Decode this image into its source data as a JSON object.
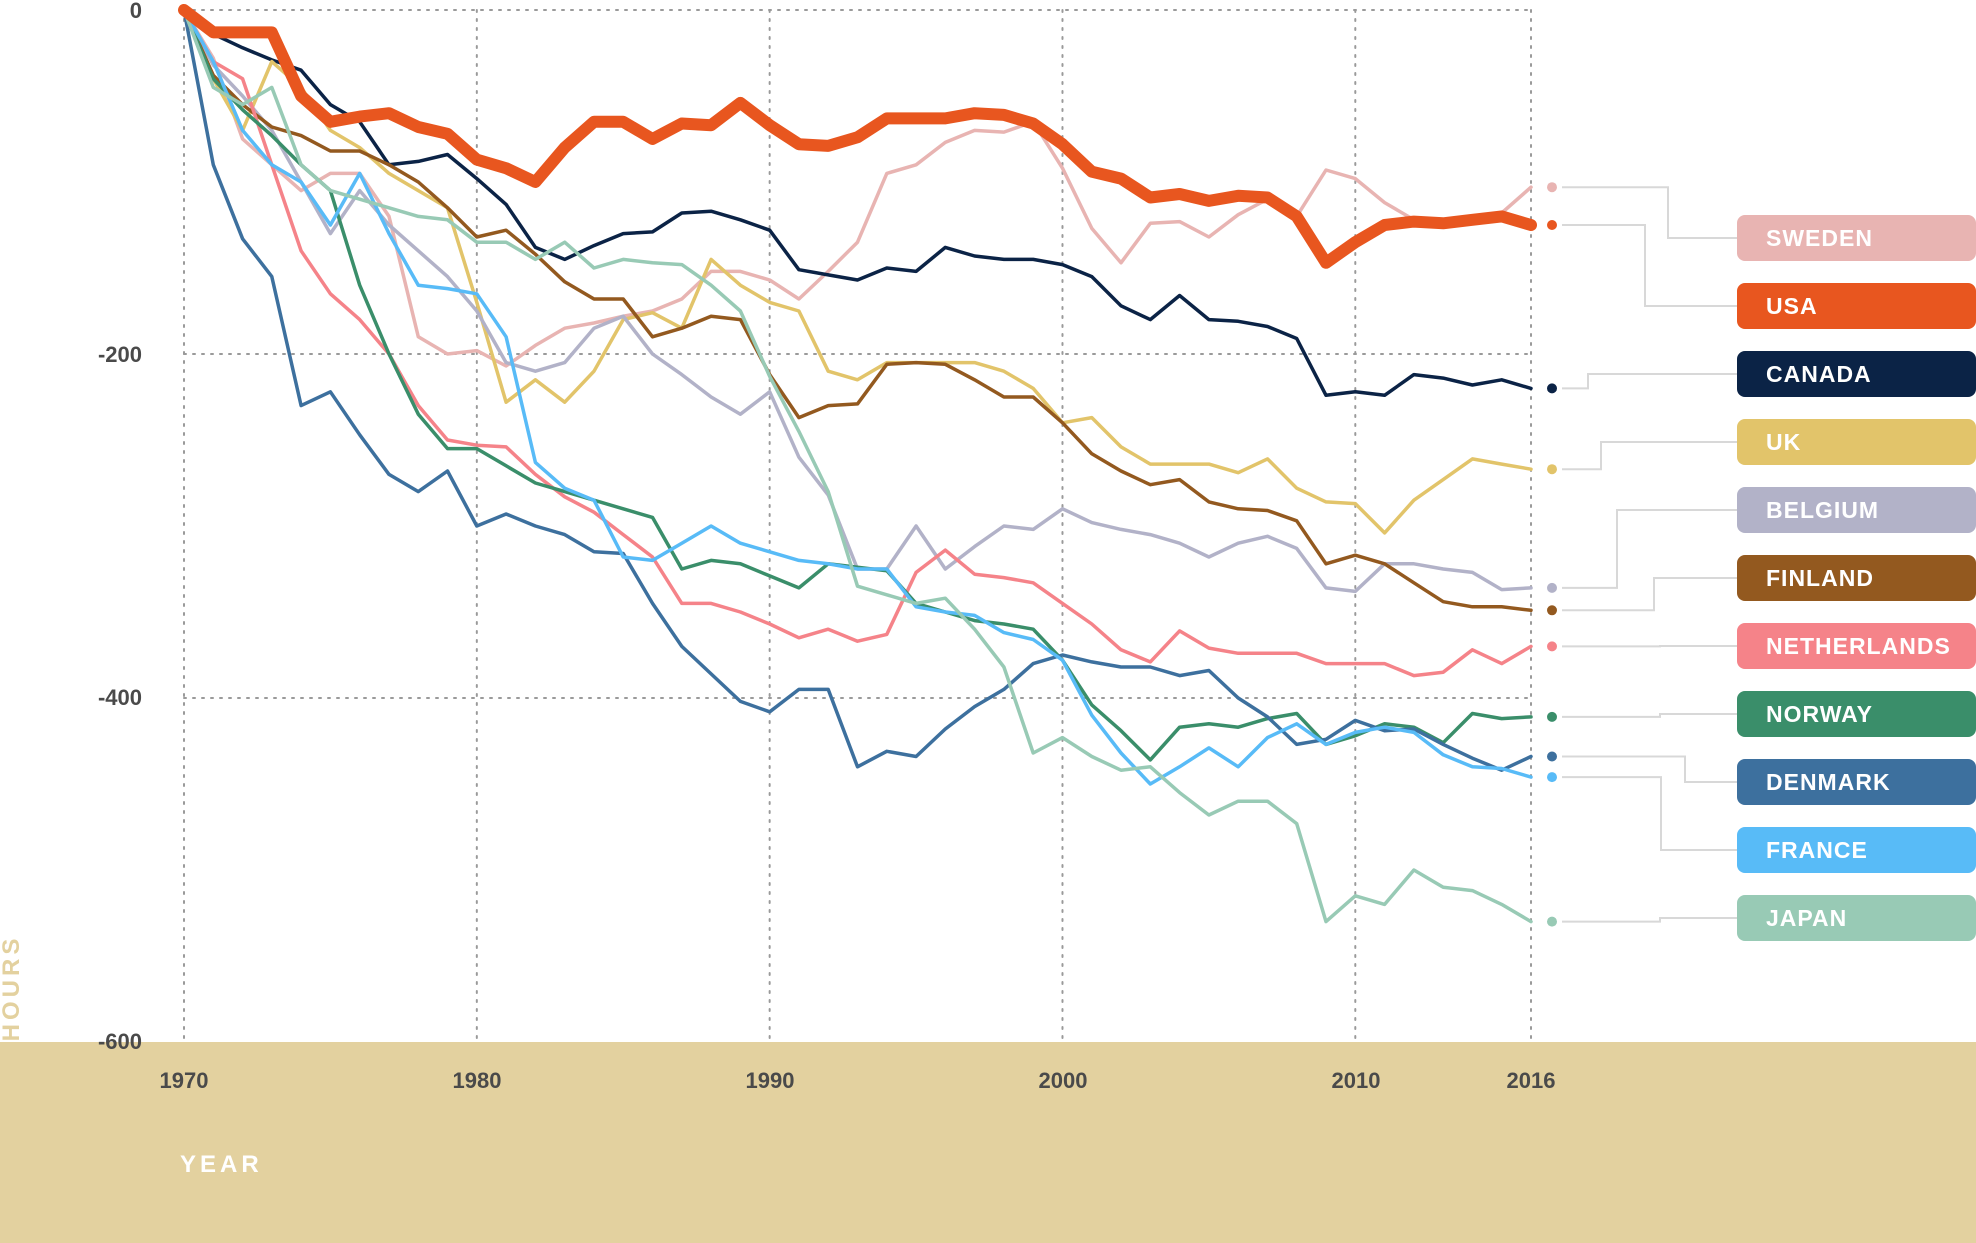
{
  "chart_data": {
    "type": "line",
    "title": "",
    "xlabel": "YEAR",
    "ylabel": "HOURS",
    "xlim": [
      1970,
      2016
    ],
    "ylim": [
      -600,
      0
    ],
    "x_ticks": [
      "1970",
      "1980",
      "1990",
      "2000",
      "2010",
      "2016"
    ],
    "y_ticks": [
      "0",
      "-200",
      "-400",
      "-600"
    ],
    "grid": "dotted",
    "legend": "right",
    "x": [
      1970,
      1971,
      1972,
      1973,
      1974,
      1975,
      1976,
      1977,
      1978,
      1979,
      1980,
      1981,
      1982,
      1983,
      1984,
      1985,
      1986,
      1987,
      1988,
      1989,
      1990,
      1991,
      1992,
      1993,
      1994,
      1995,
      1996,
      1997,
      1998,
      1999,
      2000,
      2001,
      2002,
      2003,
      2004,
      2005,
      2006,
      2007,
      2008,
      2009,
      2010,
      2011,
      2012,
      2013,
      2014,
      2015,
      2016
    ],
    "series": [
      {
        "name": "SWEDEN",
        "color": "#e8b4b2",
        "values": [
          0,
          -28,
          -75,
          -90,
          -105,
          -95,
          -95,
          -120,
          -190,
          -200,
          -198,
          -207,
          -195,
          -185,
          -182,
          -178,
          -175,
          -168,
          -152,
          -152,
          -157,
          -168,
          -152,
          -135,
          -95,
          -90,
          -77,
          -70,
          -71,
          -65,
          -92,
          -127,
          -147,
          -124,
          -123,
          -132,
          -119,
          -110,
          -120,
          -93,
          -98,
          -112,
          -122,
          -125,
          -122,
          -118,
          -103
        ]
      },
      {
        "name": "USA",
        "color": "#e8561f",
        "emphasis": true,
        "values": [
          0,
          -13,
          -13,
          -13,
          -50,
          -65,
          -62,
          -60,
          -68,
          -72,
          -87,
          -92,
          -100,
          -80,
          -65,
          -65,
          -75,
          -66,
          -67,
          -54,
          -67,
          -78,
          -79,
          -74,
          -63,
          -63,
          -63,
          -60,
          -61,
          -66,
          -78,
          -94,
          -98,
          -109,
          -107,
          -111,
          -108,
          -109,
          -120,
          -147,
          -135,
          -125,
          -123,
          -124,
          -122,
          -120,
          -125
        ]
      },
      {
        "name": "CANADA",
        "color": "#0b2346",
        "values": [
          0,
          -14,
          -22,
          -29,
          -35,
          -55,
          -65,
          -90,
          -88,
          -84,
          -98,
          -113,
          -138,
          -145,
          -137,
          -130,
          -129,
          -118,
          -117,
          -122,
          -128,
          -151,
          -154,
          -157,
          -150,
          -152,
          -138,
          -143,
          -145,
          -145,
          -148,
          -155,
          -172,
          -180,
          -166,
          -180,
          -181,
          -184,
          -191,
          -224,
          -222,
          -224,
          -212,
          -214,
          -218,
          -215,
          -220
        ]
      },
      {
        "name": "UK",
        "color": "#e2c46a",
        "values": [
          0,
          -40,
          -70,
          -30,
          -45,
          -70,
          -80,
          -95,
          -105,
          -115,
          -170,
          -228,
          -215,
          -228,
          -210,
          -180,
          -176,
          -185,
          -145,
          -160,
          -170,
          -175,
          -210,
          -215,
          -205,
          -205,
          -205,
          -205,
          -210,
          -220,
          -240,
          -237,
          -254,
          -264,
          -264,
          -264,
          -269,
          -261,
          -278,
          -286,
          -287,
          -304,
          -285,
          -273,
          -261,
          -264,
          -267
        ]
      },
      {
        "name": "BELGIUM",
        "color": "#b2b2c8",
        "values": [
          0,
          -32,
          -50,
          -70,
          -100,
          -130,
          -105,
          -125,
          -140,
          -155,
          -175,
          -205,
          -210,
          -205,
          -185,
          -178,
          -200,
          -212,
          -225,
          -235,
          -222,
          -260,
          -282,
          -325,
          -325,
          -300,
          -325,
          -312,
          -300,
          -302,
          -290,
          -298,
          -302,
          -305,
          -310,
          -318,
          -310,
          -306,
          -313,
          -336,
          -338,
          -322,
          -322,
          -325,
          -327,
          -337,
          -336
        ]
      },
      {
        "name": "FINLAND",
        "color": "#93591f",
        "values": [
          0,
          -38,
          -55,
          -68,
          -73,
          -82,
          -82,
          -90,
          -100,
          -115,
          -132,
          -128,
          -142,
          -158,
          -168,
          -168,
          -190,
          -185,
          -178,
          -180,
          -212,
          -237,
          -230,
          -229,
          -206,
          -205,
          -206,
          -215,
          -225,
          -225,
          -240,
          -258,
          -268,
          -276,
          -273,
          -286,
          -290,
          -291,
          -297,
          -322,
          -317,
          -322,
          -333,
          -344,
          -347,
          -347,
          -349
        ]
      },
      {
        "name": "NETHERLANDS",
        "color": "#f58389",
        "values": [
          0,
          -30,
          -40,
          -90,
          -140,
          -165,
          -180,
          -200,
          -230,
          -250,
          -253,
          -254,
          -270,
          -283,
          -292,
          -305,
          -318,
          -345,
          -345,
          -350,
          -357,
          -365,
          -360,
          -367,
          -363,
          -327,
          -314,
          -328,
          -330,
          -333,
          -345,
          -357,
          -372,
          -379,
          -361,
          -371,
          -374,
          -374,
          -374,
          -380,
          -380,
          -380,
          -387,
          -385,
          -372,
          -380,
          -370
        ]
      },
      {
        "name": "NORWAY",
        "color": "#3a8e6a",
        "values": [
          0,
          -40,
          -58,
          -73,
          -90,
          -105,
          -160,
          -200,
          -235,
          -255,
          -255,
          -265,
          -275,
          -280,
          -285,
          -290,
          -295,
          -325,
          -320,
          -322,
          -329,
          -336,
          -322,
          -324,
          -326,
          -345,
          -350,
          -355,
          -357,
          -360,
          -378,
          -404,
          -419,
          -436,
          -417,
          -415,
          -417,
          -412,
          -409,
          -427,
          -422,
          -415,
          -417,
          -426,
          -409,
          -412,
          -411
        ]
      },
      {
        "name": "DENMARK",
        "color": "#3d709e",
        "values": [
          0,
          -90,
          -133,
          -155,
          -230,
          -222,
          -247,
          -270,
          -280,
          -268,
          -300,
          -293,
          -300,
          -305,
          -315,
          -316,
          -345,
          -370,
          -386,
          -402,
          -408,
          -395,
          -395,
          -440,
          -431,
          -434,
          -418,
          -405,
          -395,
          -380,
          -375,
          -379,
          -382,
          -382,
          -387,
          -384,
          -400,
          -411,
          -427,
          -424,
          -413,
          -419,
          -418,
          -427,
          -435,
          -442,
          -434
        ]
      },
      {
        "name": "FRANCE",
        "color": "#58bbf7",
        "values": [
          0,
          -30,
          -70,
          -90,
          -100,
          -125,
          -95,
          -130,
          -160,
          -162,
          -165,
          -190,
          -263,
          -278,
          -285,
          -318,
          -320,
          -310,
          -300,
          -310,
          -315,
          -320,
          -322,
          -325,
          -325,
          -347,
          -350,
          -352,
          -362,
          -366,
          -378,
          -410,
          -432,
          -450,
          -440,
          -429,
          -440,
          -423,
          -415,
          -427,
          -420,
          -417,
          -420,
          -433,
          -440,
          -441,
          -446
        ]
      },
      {
        "name": "JAPAN",
        "color": "#98cab5",
        "values": [
          0,
          -45,
          -55,
          -45,
          -90,
          -105,
          -110,
          -115,
          -120,
          -122,
          -135,
          -135,
          -145,
          -135,
          -150,
          -145,
          -147,
          -148,
          -160,
          -175,
          -213,
          -245,
          -280,
          -335,
          -340,
          -345,
          -342,
          -360,
          -382,
          -432,
          -423,
          -434,
          -442,
          -440,
          -455,
          -468,
          -460,
          -460,
          -473,
          -530,
          -515,
          -520,
          -500,
          -510,
          -512,
          -520,
          -530
        ]
      }
    ]
  }
}
